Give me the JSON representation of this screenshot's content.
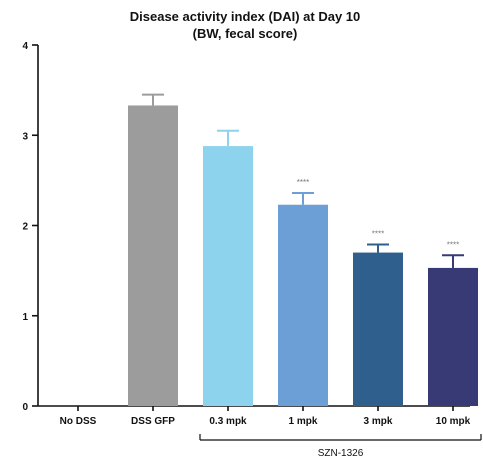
{
  "chart_data": {
    "type": "bar",
    "title_line1": "Disease activity index (DAI) at Day 10",
    "title_line2": "(BW, fecal score)",
    "categories": [
      "No DSS",
      "DSS GFP",
      "0.3 mpk",
      "1 mpk",
      "3 mpk",
      "10 mpk"
    ],
    "values": [
      0,
      3.33,
      2.88,
      2.23,
      1.7,
      1.53
    ],
    "errors": [
      0,
      0.12,
      0.17,
      0.13,
      0.09,
      0.14
    ],
    "significance": [
      "",
      "",
      "",
      "****",
      "****",
      "****"
    ],
    "colors": [
      "#ffffff",
      "#9c9c9c",
      "#8dd3ee",
      "#6b9fd6",
      "#2f5f8c",
      "#373a74"
    ],
    "ylim": [
      0,
      4
    ],
    "yticks": [
      "0",
      "1",
      "2",
      "3",
      "4"
    ],
    "xlabel": "",
    "ylabel": "",
    "grid": false,
    "group_bracket": {
      "label": "SZN-1326",
      "from_category": "0.3 mpk",
      "to_category": "10 mpk"
    }
  }
}
